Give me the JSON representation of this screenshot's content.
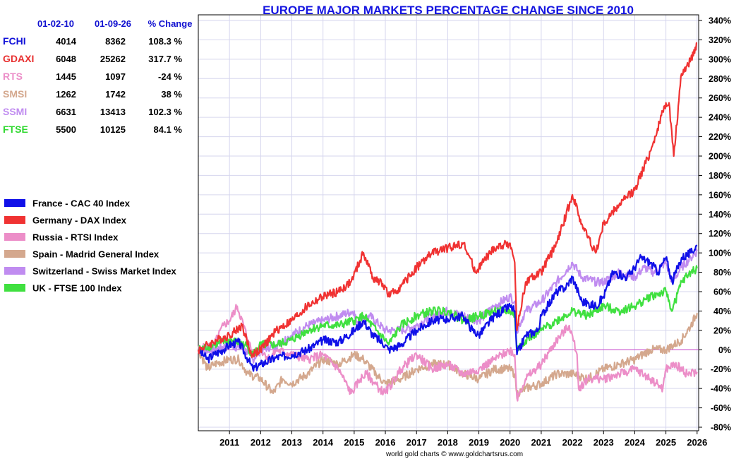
{
  "chart_data": {
    "type": "line",
    "title": "EUROPE MAJOR MARKETS PERCENTAGE CHANGE SINCE 2010",
    "credit": "world gold charts © www.goldchartsrus.com",
    "xlim": [
      2010.0,
      2026.05
    ],
    "ylim": [
      -80,
      340
    ],
    "y_ticks": [
      -80,
      -60,
      -40,
      -20,
      0,
      20,
      40,
      60,
      80,
      100,
      120,
      140,
      160,
      180,
      200,
      220,
      240,
      260,
      280,
      300,
      320,
      340
    ],
    "y_tick_labels": [
      "-80%",
      "-60%",
      "-40%",
      "-20%",
      "0%",
      "20%",
      "40%",
      "60%",
      "80%",
      "100%",
      "120%",
      "140%",
      "160%",
      "180%",
      "200%",
      "220%",
      "240%",
      "260%",
      "280%",
      "300%",
      "320%",
      "340%"
    ],
    "x_ticks": [
      2011,
      2012,
      2013,
      2014,
      2015,
      2016,
      2017,
      2018,
      2019,
      2020,
      2021,
      2022,
      2023,
      2024,
      2025,
      2026
    ],
    "x_tick_labels": [
      "2011",
      "2012",
      "2013",
      "2014",
      "2015",
      "2016",
      "2017",
      "2018",
      "2019",
      "2020",
      "2021",
      "2022",
      "2023",
      "2024",
      "2025",
      "2026"
    ],
    "grid": true,
    "y_axis_side": "right",
    "legend_position": "left",
    "zero_line_color": "#cc44cc",
    "series": [
      {
        "name": "France - CAC 40 Index",
        "color": "#1010e8",
        "x": [
          2010.0,
          2010.3,
          2010.5,
          2010.8,
          2011.0,
          2011.3,
          2011.6,
          2011.75,
          2012.0,
          2012.5,
          2013.0,
          2013.5,
          2014.0,
          2014.5,
          2015.0,
          2015.3,
          2015.6,
          2016.0,
          2016.1,
          2016.5,
          2017.0,
          2017.5,
          2018.0,
          2018.5,
          2018.8,
          2019.0,
          2019.5,
          2020.0,
          2020.15,
          2020.22,
          2020.5,
          2020.9,
          2021.0,
          2021.5,
          2021.8,
          2022.0,
          2022.3,
          2022.75,
          2023.0,
          2023.3,
          2023.75,
          2024.0,
          2024.2,
          2024.5,
          2024.75,
          2025.0,
          2025.2,
          2025.5,
          2025.8,
          2026.0
        ],
        "y": [
          0,
          -10,
          -5,
          0,
          5,
          8,
          -10,
          -20,
          -15,
          -8,
          -5,
          0,
          10,
          8,
          20,
          30,
          15,
          5,
          0,
          5,
          20,
          30,
          32,
          35,
          20,
          15,
          35,
          45,
          40,
          -5,
          15,
          20,
          35,
          60,
          65,
          75,
          50,
          45,
          55,
          80,
          75,
          85,
          95,
          90,
          80,
          95,
          70,
          95,
          100,
          108
        ]
      },
      {
        "name": "Germany - DAX Index",
        "color": "#f03232",
        "x": [
          2010.0,
          2010.3,
          2010.6,
          2011.0,
          2011.4,
          2011.7,
          2012.0,
          2012.5,
          2013.0,
          2013.5,
          2014.0,
          2014.5,
          2014.9,
          2015.3,
          2015.6,
          2016.0,
          2016.1,
          2016.5,
          2017.0,
          2017.5,
          2018.0,
          2018.5,
          2018.9,
          2019.0,
          2019.5,
          2020.0,
          2020.15,
          2020.22,
          2020.5,
          2021.0,
          2021.5,
          2022.0,
          2022.3,
          2022.75,
          2023.0,
          2023.5,
          2024.0,
          2024.5,
          2025.0,
          2025.1,
          2025.25,
          2025.5,
          2025.8,
          2026.0
        ],
        "y": [
          0,
          5,
          10,
          15,
          25,
          -5,
          0,
          20,
          30,
          45,
          55,
          60,
          70,
          100,
          75,
          65,
          55,
          65,
          85,
          100,
          105,
          110,
          80,
          85,
          105,
          110,
          90,
          20,
          70,
          80,
          110,
          160,
          130,
          100,
          130,
          150,
          165,
          205,
          255,
          255,
          200,
          285,
          300,
          317
        ]
      },
      {
        "name": "Russia - RTSI Index",
        "color": "#ec8ec8",
        "x": [
          2010.0,
          2010.5,
          2010.8,
          2011.0,
          2011.25,
          2011.6,
          2011.75,
          2012.0,
          2012.3,
          2012.5,
          2013.0,
          2013.5,
          2014.0,
          2014.5,
          2014.9,
          2015.2,
          2015.4,
          2015.8,
          2016.0,
          2016.5,
          2017.0,
          2017.5,
          2018.0,
          2018.5,
          2019.0,
          2019.5,
          2020.0,
          2020.15,
          2020.22,
          2020.5,
          2021.0,
          2021.5,
          2021.9,
          2022.15,
          2022.2,
          2022.5,
          2023.0,
          2023.5,
          2024.0,
          2024.5,
          2024.9,
          2025.0,
          2025.3,
          2025.7,
          2026.0
        ],
        "y": [
          0,
          5,
          25,
          30,
          45,
          10,
          -5,
          0,
          -10,
          0,
          -5,
          -10,
          -5,
          -20,
          -45,
          -30,
          -25,
          -40,
          -45,
          -20,
          -5,
          -20,
          -15,
          -25,
          -20,
          -10,
          0,
          -5,
          -50,
          -30,
          -15,
          10,
          25,
          -5,
          -40,
          -30,
          -30,
          -25,
          -20,
          -30,
          -40,
          -20,
          -15,
          -25,
          -23
        ]
      },
      {
        "name": "Spain - Madrid General Index",
        "color": "#d4a88e",
        "x": [
          2010.0,
          2010.3,
          2010.5,
          2011.0,
          2011.3,
          2011.6,
          2012.0,
          2012.4,
          2012.7,
          2013.0,
          2013.5,
          2014.0,
          2014.5,
          2015.0,
          2015.3,
          2015.7,
          2016.0,
          2016.5,
          2017.0,
          2017.5,
          2018.0,
          2018.5,
          2019.0,
          2019.5,
          2020.0,
          2020.15,
          2020.22,
          2020.5,
          2021.0,
          2021.5,
          2022.0,
          2022.5,
          2023.0,
          2023.5,
          2024.0,
          2024.5,
          2025.0,
          2025.5,
          2025.8,
          2026.0
        ],
        "y": [
          0,
          -20,
          -15,
          -10,
          -10,
          -25,
          -30,
          -45,
          -30,
          -35,
          -25,
          -10,
          -15,
          -5,
          -10,
          -25,
          -35,
          -30,
          -20,
          -15,
          -15,
          -25,
          -30,
          -20,
          -20,
          -25,
          -45,
          -40,
          -35,
          -25,
          -25,
          -30,
          -20,
          -15,
          -10,
          0,
          0,
          10,
          25,
          38
        ]
      },
      {
        "name": "Switzerland - Swiss Market Index",
        "color": "#c08cf0",
        "x": [
          2010.0,
          2010.5,
          2011.0,
          2011.5,
          2011.75,
          2012.0,
          2012.5,
          2013.0,
          2013.5,
          2014.0,
          2014.5,
          2015.0,
          2015.1,
          2015.5,
          2016.0,
          2016.5,
          2017.0,
          2017.5,
          2018.0,
          2018.5,
          2019.0,
          2019.5,
          2020.0,
          2020.15,
          2020.22,
          2020.5,
          2021.0,
          2021.5,
          2022.0,
          2022.3,
          2022.75,
          2023.0,
          2023.5,
          2024.0,
          2024.3,
          2024.6,
          2025.0,
          2025.2,
          2025.5,
          2025.8,
          2026.0
        ],
        "y": [
          0,
          0,
          5,
          0,
          -10,
          0,
          5,
          15,
          25,
          30,
          35,
          40,
          25,
          35,
          20,
          20,
          25,
          35,
          40,
          35,
          30,
          45,
          55,
          50,
          20,
          40,
          50,
          70,
          90,
          75,
          70,
          70,
          80,
          75,
          85,
          80,
          90,
          70,
          85,
          95,
          102
        ]
      },
      {
        "name": "UK - FTSE 100 Index",
        "color": "#40e040",
        "x": [
          2010.0,
          2010.5,
          2011.0,
          2011.5,
          2011.75,
          2012.0,
          2012.5,
          2013.0,
          2013.5,
          2014.0,
          2014.5,
          2015.0,
          2015.3,
          2015.7,
          2016.0,
          2016.1,
          2016.5,
          2017.0,
          2017.5,
          2018.0,
          2018.5,
          2019.0,
          2019.5,
          2020.0,
          2020.15,
          2020.22,
          2020.5,
          2021.0,
          2021.5,
          2022.0,
          2022.5,
          2023.0,
          2023.5,
          2024.0,
          2024.5,
          2025.0,
          2025.2,
          2025.5,
          2025.8,
          2026.0
        ],
        "y": [
          0,
          5,
          10,
          5,
          -5,
          5,
          5,
          10,
          20,
          25,
          25,
          30,
          35,
          20,
          10,
          5,
          25,
          35,
          40,
          40,
          30,
          35,
          40,
          40,
          35,
          0,
          10,
          20,
          30,
          40,
          35,
          45,
          40,
          45,
          55,
          60,
          40,
          70,
          80,
          84
        ]
      }
    ]
  },
  "table": {
    "headers": [
      "01-02-10",
      "01-09-26",
      "% Change"
    ],
    "rows": [
      {
        "symbol": "FCHI",
        "start": "4014",
        "end": "8362",
        "change": "108.3 %",
        "symbol_color": "#1010d8",
        "change_color": "#1aa01a"
      },
      {
        "symbol": "GDAXI",
        "start": "6048",
        "end": "25262",
        "change": "317.7 %",
        "symbol_color": "#e83030",
        "change_color": "#1aa01a"
      },
      {
        "symbol": "RTS",
        "start": "1445",
        "end": "1097",
        "change": "-24 %",
        "symbol_color": "#ec8ec8",
        "change_color": "#e01010"
      },
      {
        "symbol": "SMSI",
        "start": "1262",
        "end": "1742",
        "change": "38 %",
        "symbol_color": "#d4a88e",
        "change_color": "#1aa01a"
      },
      {
        "symbol": "SSMI",
        "start": "6631",
        "end": "13413",
        "change": "102.3 %",
        "symbol_color": "#c08cf0",
        "change_color": "#1aa01a"
      },
      {
        "symbol": "FTSE",
        "start": "5500",
        "end": "10125",
        "change": "84.1 %",
        "symbol_color": "#30d830",
        "change_color": "#1aa01a"
      }
    ]
  }
}
